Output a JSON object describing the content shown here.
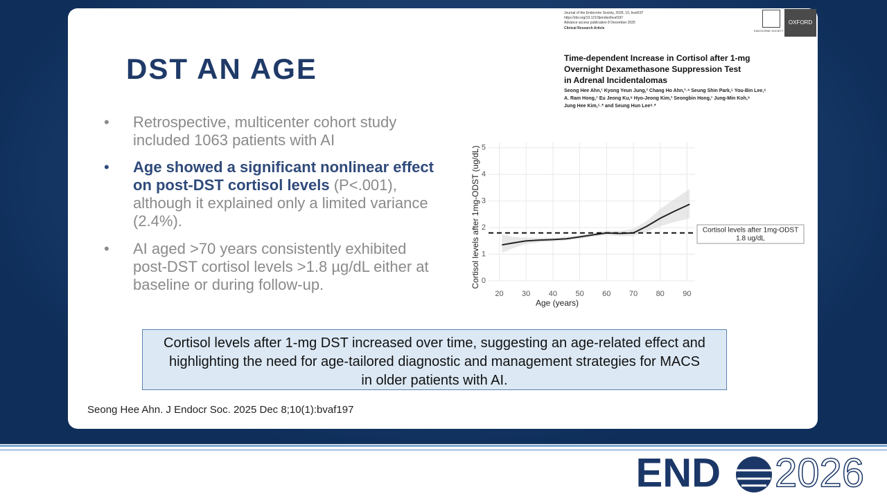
{
  "slide": {
    "title": "DST AN AGE",
    "bullets": [
      {
        "parts": [
          "Retrospective, multicenter cohort study included 1063 patients with AI"
        ]
      },
      {
        "parts": [
          "Age showed a significant nonlinear effect on post-DST cortisol levels",
          "(P<.001), although it explained only a limited variance (2.4%)."
        ]
      },
      {
        "parts": [
          "AI aged >70 years consistently exhibited post-DST cortisol levels >1.8 µg/dL either at baseline or during follow-up."
        ]
      }
    ],
    "conclusion": "Cortisol levels after 1-mg DST increased over time, suggesting an age-related effect and highlighting the need for age-tailored diagnostic and management strategies for MACS in older patients with AI.",
    "citation": "Seong Hee Ahn. J Endocr Soc. 2025 Dec 8;10(1):bvaf197"
  },
  "paper": {
    "meta": [
      "Journal of the Endocrine Society, 2026, 10, bvaf197",
      "https://doi.org/10.1210/jendso/bvaf197",
      "Advance access publication 8 December 2025",
      "Clinical Research Article"
    ],
    "publisher": "OXFORD",
    "society": "ENDOCRINE SOCIETY",
    "title": [
      "Time-dependent Increase in Cortisol after 1-mg",
      "Overnight Dexamethasone Suppression Test",
      "in Adrenal Incidentalomas"
    ],
    "authors": [
      "Seong Hee Ahn,¹ Kyong Yeun Jung,² Chang Ho Ahn,³˒⁴ Seung Shin Park,⁵ You-Bin Lee,⁶",
      "A. Ram Hong,⁷ Eu Jeong Ku,⁸ Hyo-Jeong Kim,² Seongbin Hong,¹ Jung-Min Koh,⁹",
      "Jung Hee Kim,⁵˒* and Seung Hun Lee⁹˒*"
    ]
  },
  "logo": {
    "left": "END",
    "right": "2026"
  },
  "chart_data": {
    "type": "line",
    "x_label": "Age (years)",
    "y_label": "Cortisol levels after 1mg-ODST (ug/dL)",
    "x": [
      21,
      25,
      30,
      35,
      40,
      45,
      50,
      55,
      60,
      65,
      70,
      75,
      80,
      85,
      91
    ],
    "series": [
      {
        "color": "#222222",
        "values": [
          1.35,
          1.42,
          1.5,
          1.53,
          1.55,
          1.58,
          1.65,
          1.73,
          1.8,
          1.78,
          1.8,
          2.05,
          2.35,
          2.6,
          2.88
        ]
      }
    ],
    "ci_lower": [
      1.05,
      1.22,
      1.38,
      1.45,
      1.48,
      1.52,
      1.58,
      1.66,
      1.72,
      1.68,
      1.68,
      1.85,
      2.05,
      2.2,
      2.35
    ],
    "ci_upper": [
      1.75,
      1.65,
      1.62,
      1.62,
      1.62,
      1.65,
      1.72,
      1.8,
      1.88,
      1.88,
      1.95,
      2.25,
      2.7,
      3.05,
      3.45
    ],
    "reference": {
      "value": 1.8,
      "name": "Cortisol levels after 1mg-ODST",
      "label": "1.8 ug/dL"
    },
    "xlim": [
      16,
      93
    ],
    "ylim": [
      0,
      5.2
    ],
    "xticks": [
      20,
      30,
      40,
      50,
      60,
      70,
      80,
      90
    ],
    "yticks": [
      0,
      1,
      2,
      3,
      4,
      5
    ],
    "grid": true
  }
}
